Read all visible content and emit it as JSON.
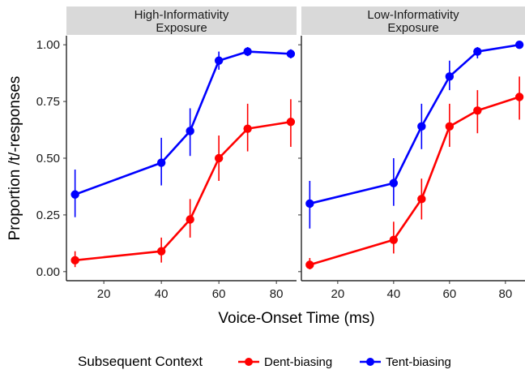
{
  "chart_data": {
    "type": "line",
    "xlabel": "Voice-Onset Time (ms)",
    "ylabel": "Proportion /t/-responses",
    "xlim": [
      7,
      87
    ],
    "ylim": [
      -0.04,
      1.04
    ],
    "x_ticks": [
      20,
      40,
      60,
      80
    ],
    "y_ticks": [
      0.0,
      0.25,
      0.5,
      0.75,
      1.0
    ],
    "y_tick_labels": [
      "0.00",
      "0.25",
      "0.50",
      "0.75",
      "1.00"
    ],
    "x_tick_labels": [
      "20",
      "40",
      "60",
      "80"
    ],
    "grid": false,
    "legend": {
      "title": "Subsequent Context",
      "position": "bottom",
      "entries": [
        "Dent-biasing",
        "Tent-biasing"
      ]
    },
    "colors": {
      "Dent-biasing": "#ff0000",
      "Tent-biasing": "#0000ff"
    },
    "x": [
      10,
      40,
      50,
      60,
      70,
      85
    ],
    "facets": [
      {
        "title_lines": [
          "High-Informativity",
          "Exposure"
        ],
        "series": [
          {
            "name": "Dent-biasing",
            "values": [
              0.05,
              0.09,
              0.23,
              0.5,
              0.63,
              0.66
            ],
            "lower": [
              0.02,
              0.04,
              0.15,
              0.4,
              0.53,
              0.55
            ],
            "upper": [
              0.09,
              0.15,
              0.32,
              0.6,
              0.74,
              0.76
            ]
          },
          {
            "name": "Tent-biasing",
            "values": [
              0.34,
              0.48,
              0.62,
              0.93,
              0.97,
              0.96
            ],
            "lower": [
              0.24,
              0.38,
              0.51,
              0.89,
              0.95,
              0.94
            ],
            "upper": [
              0.45,
              0.59,
              0.72,
              0.97,
              0.99,
              0.98
            ]
          }
        ]
      },
      {
        "title_lines": [
          "Low-Informativity",
          "Exposure"
        ],
        "series": [
          {
            "name": "Dent-biasing",
            "values": [
              0.03,
              0.14,
              0.32,
              0.64,
              0.71,
              0.77
            ],
            "lower": [
              0.01,
              0.08,
              0.23,
              0.55,
              0.61,
              0.67
            ],
            "upper": [
              0.06,
              0.22,
              0.41,
              0.74,
              0.8,
              0.86
            ]
          },
          {
            "name": "Tent-biasing",
            "values": [
              0.3,
              0.39,
              0.64,
              0.86,
              0.97,
              1.0
            ],
            "lower": [
              0.19,
              0.29,
              0.54,
              0.8,
              0.94,
              0.99
            ],
            "upper": [
              0.4,
              0.5,
              0.74,
              0.93,
              0.99,
              1.0
            ]
          }
        ]
      }
    ]
  }
}
